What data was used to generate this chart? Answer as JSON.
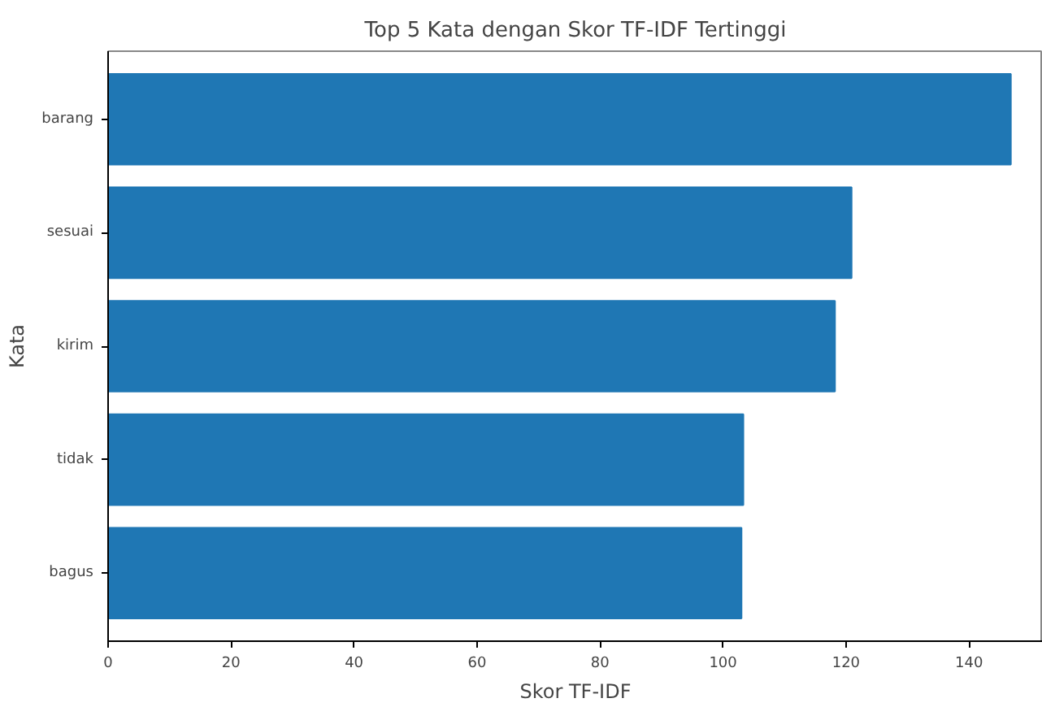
{
  "chart_data": {
    "type": "bar",
    "orientation": "horizontal",
    "title": "Top 5 Kata dengan Skor TF-IDF Tertinggi",
    "xlabel": "Skor TF-IDF",
    "ylabel": "Kata",
    "categories": [
      "barang",
      "sesuai",
      "kirim",
      "tidak",
      "bagus"
    ],
    "values": [
      146.8,
      120.9,
      118.2,
      103.3,
      103.0
    ],
    "color": "#1f77b4",
    "xlim": [
      0,
      152
    ],
    "xticks": [
      0,
      20,
      40,
      60,
      80,
      100,
      120,
      140
    ],
    "grid": false
  }
}
